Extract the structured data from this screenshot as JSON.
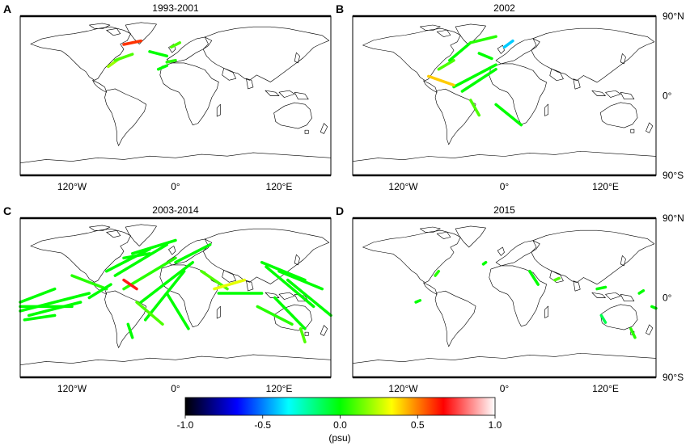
{
  "chart_data": {
    "type": "scatter",
    "panels": [
      {
        "letter": "A",
        "title": "1993-2001",
        "tracks": [
          {
            "lon": [
              -78,
              -65
            ],
            "lat": [
              33,
              42
            ],
            "v": 0.2
          },
          {
            "lon": [
              -70,
              -50
            ],
            "lat": [
              40,
              47
            ],
            "v": 0.1
          },
          {
            "lon": [
              -60,
              -40
            ],
            "lat": [
              58,
              62
            ],
            "v": 0.6
          },
          {
            "lon": [
              -30,
              -10
            ],
            "lat": [
              50,
              45
            ],
            "v": 0.0
          },
          {
            "lon": [
              -10,
              0
            ],
            "lat": [
              38,
              40
            ],
            "v": 0.05
          },
          {
            "lon": [
              -20,
              -10
            ],
            "lat": [
              30,
              34
            ],
            "v": 0.0
          },
          {
            "lon": [
              -5,
              5
            ],
            "lat": [
              55,
              60
            ],
            "v": 0.1
          }
        ]
      },
      {
        "letter": "B",
        "title": "2002",
        "tracks": [
          {
            "lon": [
              -78,
              -60
            ],
            "lat": [
              30,
              40
            ],
            "v": 0.1
          },
          {
            "lon": [
              -65,
              -40
            ],
            "lat": [
              40,
              60
            ],
            "v": 0.0
          },
          {
            "lon": [
              -40,
              -10
            ],
            "lat": [
              60,
              67
            ],
            "v": 0.05
          },
          {
            "lon": [
              -60,
              -10
            ],
            "lat": [
              10,
              35
            ],
            "v": 0.0
          },
          {
            "lon": [
              -50,
              -10
            ],
            "lat": [
              5,
              30
            ],
            "v": 0.0
          },
          {
            "lon": [
              -90,
              -60
            ],
            "lat": [
              22,
              12
            ],
            "v": 0.4
          },
          {
            "lon": [
              -10,
              20
            ],
            "lat": [
              -10,
              -33
            ],
            "v": 0.0
          },
          {
            "lon": [
              -40,
              -30
            ],
            "lat": [
              -5,
              -22
            ],
            "v": 0.1
          },
          {
            "lon": [
              0,
              10
            ],
            "lat": [
              55,
              62
            ],
            "v": -0.4
          },
          {
            "lon": [
              -30,
              -15
            ],
            "lat": [
              48,
              42
            ],
            "v": 0.0
          }
        ]
      },
      {
        "letter": "C",
        "title": "2003-2014",
        "tracks": [
          {
            "lon": [
              -180,
              -140
            ],
            "lat": [
              -5,
              10
            ],
            "v": 0.0
          },
          {
            "lon": [
              -180,
              -100
            ],
            "lat": [
              -15,
              5
            ],
            "v": 0.0
          },
          {
            "lon": [
              -170,
              -110
            ],
            "lat": [
              -20,
              -5
            ],
            "v": 0.0
          },
          {
            "lon": [
              -180,
              -120
            ],
            "lat": [
              -10,
              -10
            ],
            "v": 0.0
          },
          {
            "lon": [
              -175,
              -140
            ],
            "lat": [
              -25,
              -20
            ],
            "v": 0.0
          },
          {
            "lon": [
              -120,
              -80
            ],
            "lat": [
              25,
              10
            ],
            "v": 0.05
          },
          {
            "lon": [
              -100,
              -75
            ],
            "lat": [
              0,
              15
            ],
            "v": 0.0
          },
          {
            "lon": [
              -80,
              -30
            ],
            "lat": [
              30,
              55
            ],
            "v": 0.0
          },
          {
            "lon": [
              -70,
              -10
            ],
            "lat": [
              25,
              60
            ],
            "v": 0.0
          },
          {
            "lon": [
              -60,
              0
            ],
            "lat": [
              10,
              45
            ],
            "v": 0.05
          },
          {
            "lon": [
              -50,
              0
            ],
            "lat": [
              50,
              65
            ],
            "v": 0.0
          },
          {
            "lon": [
              -40,
              20
            ],
            "lat": [
              -5,
              40
            ],
            "v": 0.0
          },
          {
            "lon": [
              -35,
              10
            ],
            "lat": [
              -25,
              30
            ],
            "v": 0.0
          },
          {
            "lon": [
              -10,
              15
            ],
            "lat": [
              5,
              -35
            ],
            "v": 0.0
          },
          {
            "lon": [
              -45,
              -15
            ],
            "lat": [
              -5,
              -30
            ],
            "v": 0.1
          },
          {
            "lon": [
              -60,
              -45
            ],
            "lat": [
              20,
              10
            ],
            "v": 0.7
          },
          {
            "lon": [
              -55,
              -50
            ],
            "lat": [
              -30,
              -45
            ],
            "v": 0.0
          },
          {
            "lon": [
              30,
              60
            ],
            "lat": [
              30,
              10
            ],
            "v": 0.1
          },
          {
            "lon": [
              45,
              80
            ],
            "lat": [
              10,
              20
            ],
            "v": 0.3
          },
          {
            "lon": [
              50,
              100
            ],
            "lat": [
              5,
              5
            ],
            "v": 0.0
          },
          {
            "lon": [
              100,
              150
            ],
            "lat": [
              40,
              20
            ],
            "v": 0.0
          },
          {
            "lon": [
              105,
              160
            ],
            "lat": [
              35,
              -10
            ],
            "v": 0.0
          },
          {
            "lon": [
              120,
              170
            ],
            "lat": [
              30,
              10
            ],
            "v": 0.0
          },
          {
            "lon": [
              115,
              150
            ],
            "lat": [
              0,
              -35
            ],
            "v": 0.0
          },
          {
            "lon": [
              130,
              180
            ],
            "lat": [
              20,
              -20
            ],
            "v": 0.0
          },
          {
            "lon": [
              95,
              135
            ],
            "lat": [
              -10,
              -30
            ],
            "v": 0.05
          },
          {
            "lon": [
              145,
              150
            ],
            "lat": [
              -35,
              -50
            ],
            "v": 0.1
          },
          {
            "lon": [
              0,
              40
            ],
            "lat": [
              40,
              60
            ],
            "v": 0.0
          },
          {
            "lon": [
              -60,
              -30
            ],
            "lat": [
              45,
              50
            ],
            "v": 0.0
          }
        ]
      },
      {
        "letter": "D",
        "title": "2015",
        "tracks": [
          {
            "lon": [
              -82,
              -78
            ],
            "lat": [
              25,
              30
            ],
            "v": 0.05
          },
          {
            "lon": [
              -25,
              -22
            ],
            "lat": [
              38,
              40
            ],
            "v": 0.0
          },
          {
            "lon": [
              30,
              40
            ],
            "lat": [
              30,
              15
            ],
            "v": 0.0
          },
          {
            "lon": [
              60,
              65
            ],
            "lat": [
              20,
              22
            ],
            "v": 0.1
          },
          {
            "lon": [
              110,
              120
            ],
            "lat": [
              10,
              12
            ],
            "v": 0.0
          },
          {
            "lon": [
              160,
              165
            ],
            "lat": [
              5,
              8
            ],
            "v": 0.0
          },
          {
            "lon": [
              -105,
              -100
            ],
            "lat": [
              -5,
              -3
            ],
            "v": 0.0
          },
          {
            "lon": [
              115,
              120
            ],
            "lat": [
              -20,
              -28
            ],
            "v": -0.1
          },
          {
            "lon": [
              150,
              155
            ],
            "lat": [
              -35,
              -45
            ],
            "v": 0.05
          },
          {
            "lon": [
              175,
              180
            ],
            "lat": [
              -10,
              -12
            ],
            "v": 0.0
          }
        ]
      }
    ],
    "x_ticks": [
      "120°W",
      "0°",
      "120°E"
    ],
    "x_tick_lons": [
      -120,
      0,
      120
    ],
    "y_ticks_right": [
      "90°N",
      "0°",
      "90°S"
    ],
    "y_tick_lats": [
      90,
      0,
      -90
    ],
    "colorbar": {
      "min": -1.0,
      "max": 1.0,
      "ticks": [
        "-1.0",
        "-0.5",
        "0.0",
        "0.5",
        "1.0"
      ],
      "tick_values": [
        -1.0,
        -0.5,
        0.0,
        0.5,
        1.0
      ],
      "label": "(psu)",
      "stops": [
        "#000000",
        "#0000ff",
        "#00ffff",
        "#00ff00",
        "#ffff00",
        "#ff0000",
        "#ffffff"
      ]
    }
  }
}
